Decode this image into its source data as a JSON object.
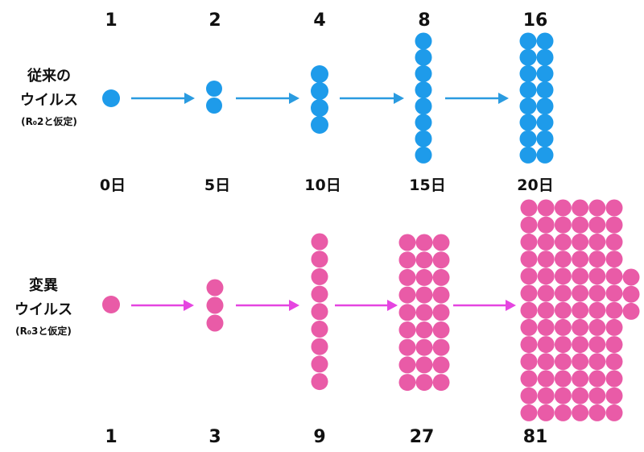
{
  "rows": [
    {
      "id": "conventional",
      "label_lines": [
        "従来の",
        "ウイルス"
      ],
      "note": "(R₀2と仮定)",
      "color": "#1e9bea",
      "arrow_color": "#2a9be0",
      "counts": [
        "1",
        "2",
        "4",
        "8",
        "16"
      ]
    },
    {
      "id": "variant",
      "label_lines": [
        "変異",
        "ウイルス"
      ],
      "note": "(R₀3と仮定)",
      "color": "#e95ba7",
      "arrow_color": "#e545e0",
      "counts": [
        "1",
        "3",
        "9",
        "27",
        "81"
      ]
    }
  ],
  "days": [
    "0日",
    "5日",
    "10日",
    "15日",
    "20日"
  ]
}
